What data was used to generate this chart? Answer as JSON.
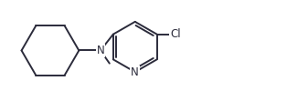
{
  "bg_color": "#ffffff",
  "line_color": "#2b2b3b",
  "line_width": 1.4,
  "text_color": "#2b2b3b",
  "font_size": 8.5,
  "figsize": [
    3.14,
    1.11
  ],
  "dpi": 100,
  "xlim": [
    0,
    10
  ],
  "ylim": [
    0,
    3.5
  ]
}
